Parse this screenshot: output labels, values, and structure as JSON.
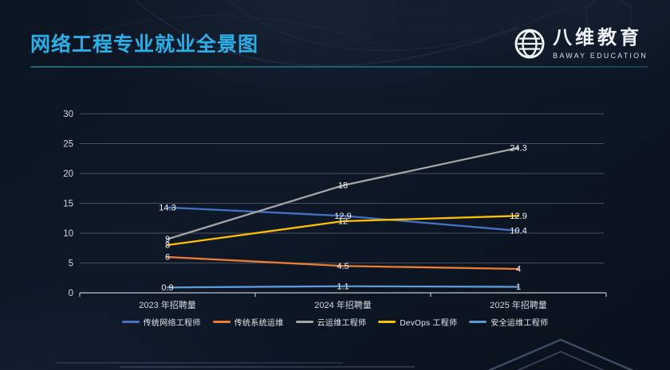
{
  "header": {
    "title": "网络工程专业就业全景图",
    "logo_name": "八维教育",
    "logo_subtitle": "BAWAY EDUCATION"
  },
  "colors": {
    "title_accent": "#2BAFE8",
    "divider": "#1E6476",
    "background": "#0C1522",
    "grid_line": "#8A94A3",
    "axis_line": "#C8CDD4",
    "axis_text": "#D4D9DF",
    "data_label": "#F2F2F2"
  },
  "chart_data": {
    "type": "line",
    "title": "",
    "xlabel": "",
    "ylabel": "",
    "categories": [
      "2023 年招聘量",
      "2024 年招聘量",
      "2025 年招聘量"
    ],
    "series": [
      {
        "name": "传统网络工程师",
        "color": "#4472C4",
        "values": [
          14.3,
          12.9,
          10.4
        ]
      },
      {
        "name": "传统系统运维",
        "color": "#ED7D31",
        "values": [
          6,
          4.5,
          4
        ]
      },
      {
        "name": "云运维工程师",
        "color": "#A5A5A5",
        "values": [
          9,
          18,
          24.3
        ]
      },
      {
        "name": "DevOps 工程师",
        "color": "#FFC000",
        "values": [
          8,
          12,
          12.9
        ]
      },
      {
        "name": "安全运维工程师",
        "color": "#5B9BD5",
        "values": [
          0.9,
          1.1,
          1
        ]
      }
    ],
    "ylim": [
      0,
      30
    ],
    "ytick_step": 5,
    "grid": true,
    "legend_position": "bottom",
    "data_labels": true
  }
}
